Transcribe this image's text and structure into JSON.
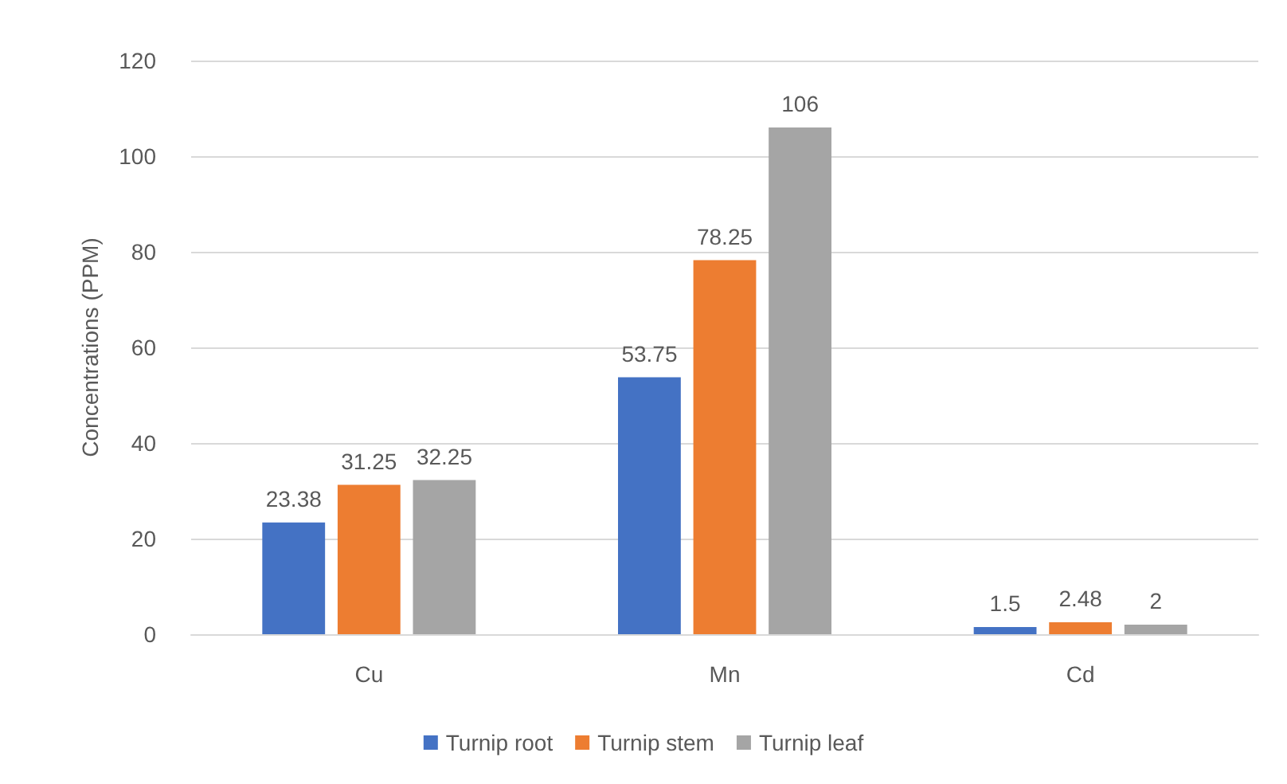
{
  "chart_data": {
    "type": "bar",
    "ylabel": "Concentrations (PPM)",
    "categories": [
      "Cu",
      "Mn",
      "Cd"
    ],
    "series": [
      {
        "name": "Turnip root",
        "color": "#4472c4",
        "values": [
          23.38,
          53.75,
          1.5
        ]
      },
      {
        "name": "Turnip stem",
        "color": "#ed7d31",
        "values": [
          31.25,
          78.25,
          2.48
        ]
      },
      {
        "name": "Turnip leaf",
        "color": "#a5a5a5",
        "values": [
          32.25,
          106,
          2
        ]
      }
    ],
    "ylim": [
      0,
      120
    ],
    "yticks": [
      0,
      20,
      40,
      60,
      80,
      100,
      120
    ],
    "grid": "y",
    "legend": "bottom",
    "data_labels": true
  }
}
